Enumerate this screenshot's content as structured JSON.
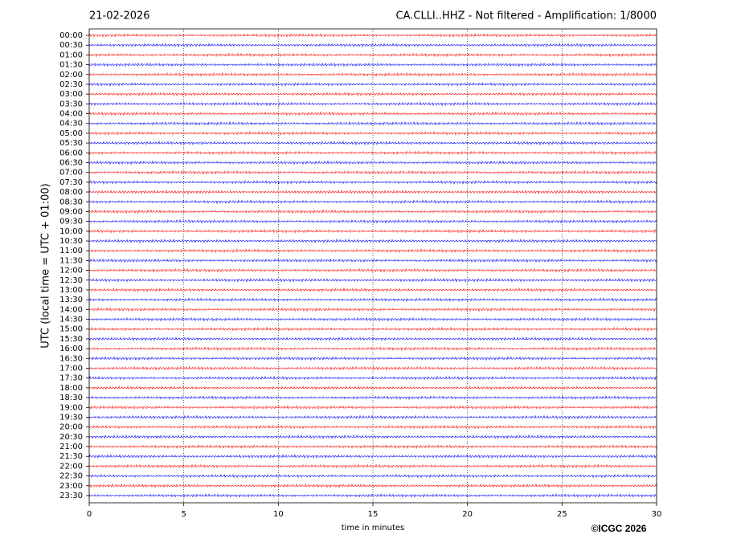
{
  "chart_data": {
    "type": "helicorder",
    "title_left": "21-02-2026",
    "title": "CA.CLLI..HHZ - Not filtered - Amplification: 1/8000",
    "xlabel": "time in minutes",
    "ylabel": "UTC (local time = UTC + 01:00)",
    "footer": "©ICGC 2026",
    "categories": [
      "00:00",
      "00:30",
      "01:00",
      "01:30",
      "02:00",
      "02:30",
      "03:00",
      "03:30",
      "04:00",
      "04:30",
      "05:00",
      "05:30",
      "06:00",
      "06:30",
      "07:00",
      "07:30",
      "08:00",
      "08:30",
      "09:00",
      "09:30",
      "10:00",
      "10:30",
      "11:00",
      "11:30",
      "12:00",
      "12:30",
      "13:00",
      "13:30",
      "14:00",
      "14:30",
      "15:00",
      "15:30",
      "16:00",
      "16:30",
      "17:00",
      "17:30",
      "18:00",
      "18:30",
      "19:00",
      "19:30",
      "20:00",
      "20:30",
      "21:00",
      "21:30",
      "22:00",
      "22:30",
      "23:00",
      "23:30"
    ],
    "colors": [
      "#ff0000",
      "#0000ff"
    ],
    "xlim": [
      0,
      30
    ],
    "xticks": [
      0,
      5,
      10,
      15,
      20,
      25,
      30
    ],
    "grid": true
  }
}
